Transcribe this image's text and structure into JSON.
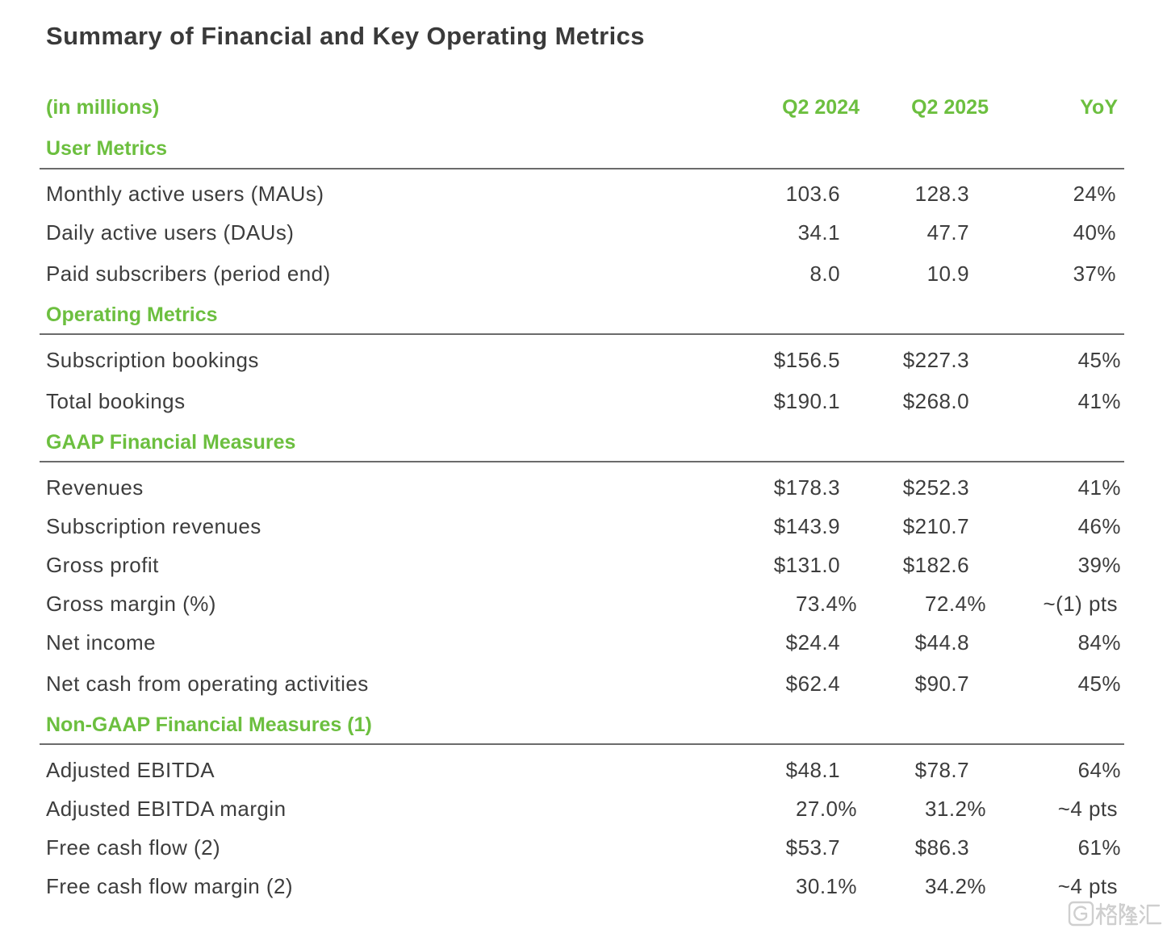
{
  "title": "Summary of Financial and Key Operating Metrics",
  "header": {
    "unit": "(in millions)",
    "col1": "Q2 2024",
    "col2": "Q2 2025",
    "col3": "YoY"
  },
  "sections": [
    {
      "name": "User Metrics",
      "rows": [
        {
          "label": "Monthly active users (MAUs)",
          "q2_2024": "103.6",
          "q2_2025": "128.3",
          "yoy": "24%"
        },
        {
          "label": "Daily active users (DAUs)",
          "q2_2024": "34.1",
          "q2_2025": "47.7",
          "yoy": "40%"
        },
        {
          "label": "Paid subscribers (period end)",
          "q2_2024": "8.0",
          "q2_2025": "10.9",
          "yoy": "37%"
        }
      ]
    },
    {
      "name": "Operating Metrics",
      "rows": [
        {
          "label": "Subscription bookings",
          "q2_2024": "$156.5",
          "q2_2025": "$227.3",
          "yoy": "45%"
        },
        {
          "label": "Total bookings",
          "q2_2024": "$190.1",
          "q2_2025": "$268.0",
          "yoy": "41%"
        }
      ]
    },
    {
      "name": "GAAP Financial Measures",
      "rows": [
        {
          "label": "Revenues",
          "q2_2024": "$178.3",
          "q2_2025": "$252.3",
          "yoy": "41%"
        },
        {
          "label": "Subscription revenues",
          "q2_2024": "$143.9",
          "q2_2025": "$210.7",
          "yoy": "46%"
        },
        {
          "label": "Gross profit",
          "q2_2024": "$131.0",
          "q2_2025": "$182.6",
          "yoy": "39%"
        },
        {
          "label": "Gross margin (%)",
          "q2_2024": "73.4%",
          "q2_2025": "72.4%",
          "yoy": "~(1) pts"
        },
        {
          "label": "Net income",
          "q2_2024": "$24.4",
          "q2_2025": "$44.8",
          "yoy": "84%"
        },
        {
          "label": "Net cash from operating activities",
          "q2_2024": "$62.4",
          "q2_2025": "$90.7",
          "yoy": "45%"
        }
      ]
    },
    {
      "name": "Non-GAAP Financial Measures (1)",
      "rows": [
        {
          "label": "Adjusted EBITDA",
          "q2_2024": "$48.1",
          "q2_2025": "$78.7",
          "yoy": "64%"
        },
        {
          "label": "Adjusted EBITDA margin",
          "q2_2024": "27.0%",
          "q2_2025": "31.2%",
          "yoy": "~4 pts"
        },
        {
          "label": "Free cash flow (2)",
          "q2_2024": "$53.7",
          "q2_2025": "$86.3",
          "yoy": "61%"
        },
        {
          "label": "Free cash flow margin (2)",
          "q2_2024": "30.1%",
          "q2_2025": "34.2%",
          "yoy": "~4 pts"
        }
      ]
    }
  ],
  "colors": {
    "accent": "#6cbf3f",
    "title": "#3a3a3a",
    "text": "#3d3d3d",
    "rule": "#6b6b6b",
    "watermark": "#cfcfcf"
  },
  "watermark": {
    "text": "格隆汇",
    "icon": "g-logo-icon"
  }
}
